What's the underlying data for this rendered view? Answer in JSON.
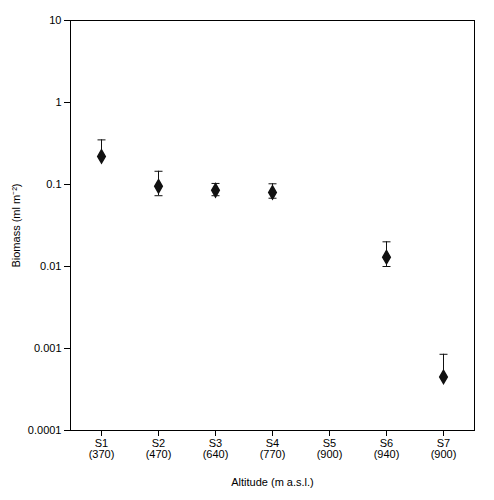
{
  "chart_data": {
    "type": "errorbar",
    "categories": [
      "S1\n(370)",
      "S2\n(470)",
      "S3\n(640)",
      "S4\n(770)",
      "S5\n(900)",
      "S6\n(940)",
      "S7\n(900)"
    ],
    "values": [
      0.22,
      0.095,
      0.085,
      0.08,
      null,
      0.013,
      0.00045
    ],
    "err_up": [
      0.13,
      0.05,
      0.018,
      0.022,
      null,
      0.007,
      0.0004
    ],
    "err_down": [
      null,
      0.022,
      0.012,
      0.012,
      null,
      0.003,
      null
    ],
    "color": "#111111",
    "marker": "diamond",
    "log": "y",
    "ylim": [
      0.0001,
      10
    ],
    "yticks": [
      0.0001,
      0.001,
      0.01,
      0.1,
      1,
      10
    ],
    "ylabel": "Biomass (ml m⁻²)",
    "xlabel": "Altitude (m a.s.l.)",
    "grid": false
  }
}
